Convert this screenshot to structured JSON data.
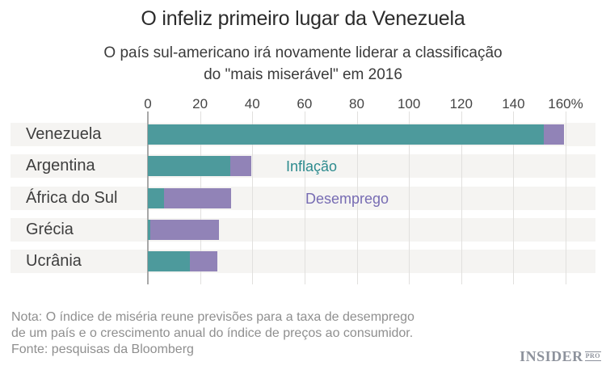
{
  "title": "O infeliz primeiro lugar da Venezuela",
  "subtitle": {
    "line1": "O país sul-americano irá novamente liderar a classificação",
    "line2": "do \"mais miserável\" em 2016"
  },
  "chart_data": {
    "type": "bar",
    "orientation": "horizontal",
    "stacked": true,
    "unit": "%",
    "categories": [
      "Venezuela",
      "Argentina",
      "África do Sul",
      "Grécia",
      "Ucrânia"
    ],
    "series": [
      {
        "name": "Inflação",
        "color": "#4d9a9c",
        "values": [
          151.5,
          31.5,
          6.2,
          1.0,
          16.2
        ]
      },
      {
        "name": "Desemprego",
        "color": "#9183b7",
        "values": [
          8.0,
          8.0,
          25.8,
          26.2,
          10.3
        ]
      }
    ],
    "totals": [
      159.5,
      39.5,
      32.0,
      27.2,
      26.5
    ],
    "xlim": [
      0,
      160
    ],
    "x_ticks": [
      0,
      20,
      40,
      60,
      80,
      100,
      120,
      140,
      160
    ],
    "x_tick_labels": [
      "0",
      "20",
      "40",
      "60",
      "80",
      "100",
      "120",
      "140",
      "160%"
    ],
    "grid": true,
    "legend_position": "inside-plot"
  },
  "legend": {
    "inflacao_label": "Inflação",
    "desemprego_label": "Desemprego",
    "inflacao_color": "#2d8b8e",
    "desemprego_color": "#776cb3"
  },
  "note": {
    "line1": "Nota: O índice de miséria reune previsões para a taxa de desemprego",
    "line2": "de um país e o crescimento anual do índice de preços ao consumidor.",
    "line3": "Fonte: pesquisas da Bloomberg"
  },
  "logo": {
    "name": "INSIDER",
    "suffix": "PRO"
  },
  "colors": {
    "bar_inflacao": "#4d9a9c",
    "bar_desemprego": "#9183b7",
    "band_bg": "#f5f4f2",
    "gridline": "#e1e0de",
    "zero_line": "#a8a8a8",
    "axis_text": "#454545",
    "title_text": "#2b2b2b",
    "note_text": "#8f8f8f",
    "logo_text": "#8d929c"
  }
}
